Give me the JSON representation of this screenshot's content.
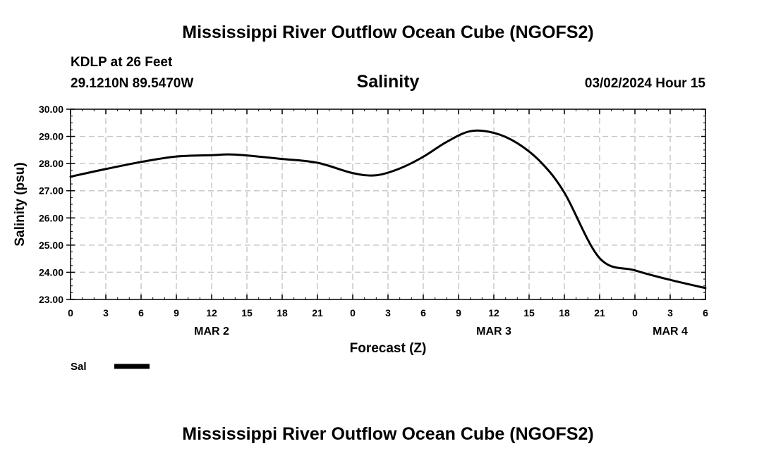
{
  "header": {
    "title": "Mississippi River Outflow Ocean Cube (NGOFS2)",
    "station": "KDLP at 26 Feet",
    "location": "29.1210N  89.5470W",
    "variable": "Salinity",
    "datetime": "03/02/2024 Hour 15"
  },
  "footer": {
    "title": "Mississippi River Outflow Ocean Cube (NGOFS2)"
  },
  "chart_data": {
    "type": "line",
    "title": "Salinity",
    "xlabel": "Forecast (Z)",
    "ylabel": "Salinity (psu)",
    "xlim": [
      0,
      54
    ],
    "ylim": [
      23,
      30
    ],
    "grid": true,
    "x_ticks": [
      0,
      3,
      6,
      9,
      12,
      15,
      18,
      21,
      24,
      27,
      30,
      33,
      36,
      39,
      42,
      45,
      48,
      51,
      54
    ],
    "x_tick_labels": [
      "0",
      "3",
      "6",
      "9",
      "12",
      "15",
      "18",
      "21",
      "0",
      "3",
      "6",
      "9",
      "12",
      "15",
      "18",
      "21",
      "0",
      "3",
      "6"
    ],
    "y_ticks": [
      23,
      24,
      25,
      26,
      27,
      28,
      29,
      30
    ],
    "y_tick_labels": [
      "23.00",
      "24.00",
      "25.00",
      "26.00",
      "27.00",
      "28.00",
      "29.00",
      "30.00"
    ],
    "day_labels": [
      {
        "x": 12,
        "label": "MAR 2"
      },
      {
        "x": 36,
        "label": "MAR 3"
      },
      {
        "x": 51,
        "label": "MAR 4"
      }
    ],
    "legend": {
      "position": "bottom-left",
      "entries": [
        "Sal"
      ]
    },
    "series": [
      {
        "name": "Sal",
        "color": "#000000",
        "x": [
          0,
          3,
          6,
          9,
          12,
          14,
          18,
          21,
          24,
          26,
          28,
          30,
          32,
          34,
          36,
          38,
          40,
          42,
          45,
          48,
          51,
          54
        ],
        "values": [
          27.52,
          27.8,
          28.06,
          28.26,
          28.31,
          28.33,
          28.17,
          28.03,
          27.65,
          27.57,
          27.82,
          28.25,
          28.8,
          29.19,
          29.13,
          28.75,
          28.05,
          26.93,
          24.52,
          24.07,
          23.72,
          23.42
        ]
      }
    ]
  }
}
